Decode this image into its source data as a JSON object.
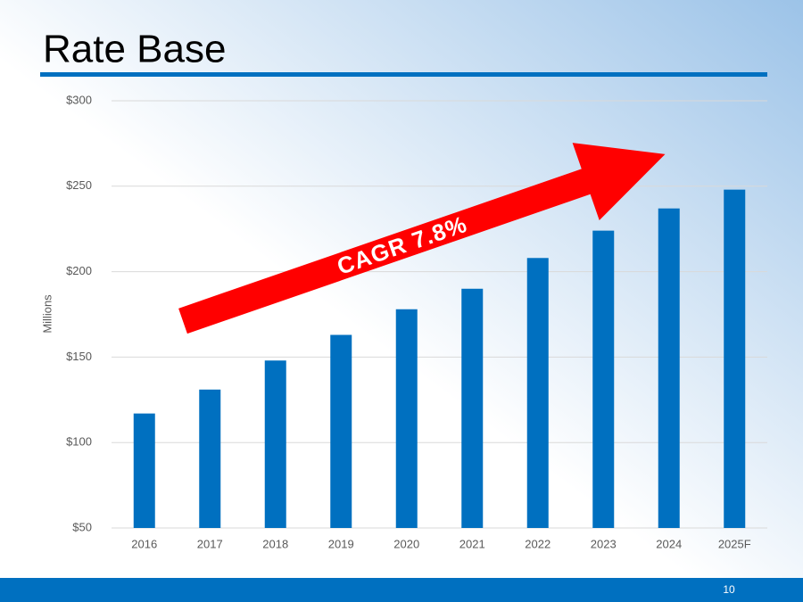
{
  "chart_data": {
    "type": "bar",
    "title": "Rate Base",
    "ylabel": "Millions",
    "categories": [
      "2016",
      "2017",
      "2018",
      "2019",
      "2020",
      "2021",
      "2022",
      "2023",
      "2024",
      "2025F"
    ],
    "values": [
      117,
      131,
      148,
      163,
      178,
      190,
      208,
      224,
      237,
      248
    ],
    "color": "#0070c0",
    "ylim": [
      50,
      300
    ],
    "yticks": [
      {
        "value": 50,
        "label": "$50"
      },
      {
        "value": 100,
        "label": "$100"
      },
      {
        "value": 150,
        "label": "$150"
      },
      {
        "value": 200,
        "label": "$200"
      },
      {
        "value": 250,
        "label": "$250"
      },
      {
        "value": 300,
        "label": "$300"
      }
    ],
    "grid": true,
    "annotations": [
      "CAGR 7.8%"
    ]
  },
  "page_number": "10"
}
